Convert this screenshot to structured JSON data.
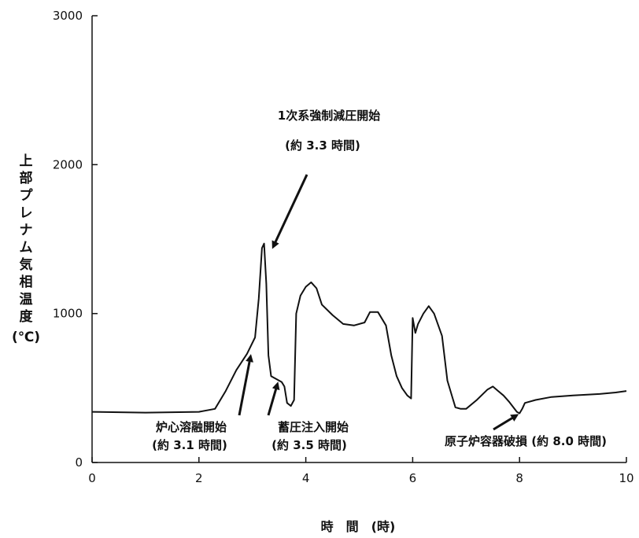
{
  "chart_data": {
    "type": "line",
    "title": "",
    "xlabel": "時　間　(時)",
    "ylabel": "上部プレナム気相温度(℃)",
    "xlim": [
      0,
      10
    ],
    "ylim": [
      0,
      3000
    ],
    "xticks": [
      0,
      2,
      4,
      6,
      8,
      10
    ],
    "yticks": [
      0,
      1000,
      2000,
      3000
    ],
    "grid": false,
    "series": [
      {
        "x": [
          0,
          1.0,
          2.0,
          2.3,
          2.5,
          2.7,
          2.9,
          3.05,
          3.12,
          3.18,
          3.22,
          3.26,
          3.3,
          3.35,
          3.45,
          3.55,
          3.6,
          3.65,
          3.72,
          3.78,
          3.82,
          3.9,
          4.0,
          4.1,
          4.2,
          4.3,
          4.5,
          4.7,
          4.9,
          5.1,
          5.2,
          5.35,
          5.5,
          5.6,
          5.7,
          5.8,
          5.9,
          5.97,
          6.0,
          6.05,
          6.1,
          6.2,
          6.3,
          6.4,
          6.55,
          6.65,
          6.75,
          6.8,
          6.9,
          7.0,
          7.2,
          7.4,
          7.5,
          7.6,
          7.7,
          7.8,
          7.95,
          8.0,
          8.05,
          8.1,
          8.3,
          8.6,
          9.0,
          9.5,
          9.8,
          10.0
        ],
        "y": [
          340,
          335,
          340,
          360,
          480,
          620,
          730,
          840,
          1100,
          1440,
          1470,
          1200,
          720,
          580,
          560,
          540,
          510,
          400,
          380,
          420,
          1000,
          1120,
          1180,
          1210,
          1170,
          1060,
          990,
          930,
          920,
          940,
          1010,
          1010,
          920,
          720,
          580,
          500,
          450,
          430,
          970,
          870,
          930,
          1000,
          1050,
          1000,
          850,
          550,
          430,
          370,
          360,
          360,
          420,
          490,
          510,
          480,
          450,
          410,
          340,
          330,
          360,
          400,
          420,
          440,
          450,
          460,
          470,
          480
        ]
      }
    ],
    "annotations": [
      {
        "line1": "1次系強制減圧開始",
        "line2": "(約 3.3 時間)"
      },
      {
        "line1": "炉心溶融開始",
        "line2": "(約 3.1 時間)"
      },
      {
        "line1": "蓄圧注入開始",
        "line2": "(約 3.5 時間)"
      },
      {
        "line1": "原子炉容器破損 (約 8.0 時間)",
        "line2": ""
      }
    ]
  }
}
